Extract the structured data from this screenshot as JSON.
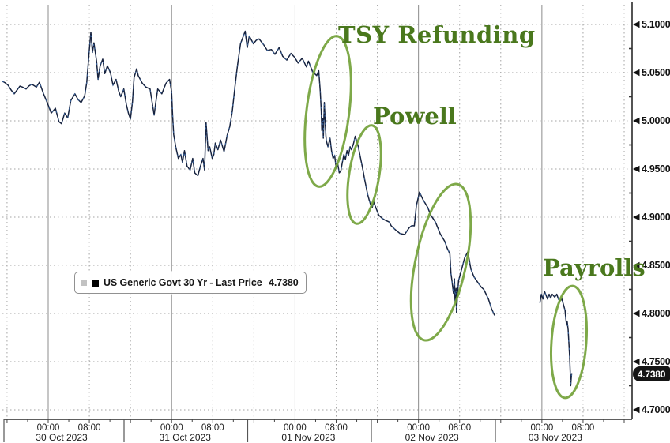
{
  "chart_data": {
    "type": "line",
    "instrument": "US Generic Govt 30 Yr",
    "series_name": "US Generic Govt 30 Yr - Last Price",
    "last_price": 4.738,
    "last_price_label": "4.7380",
    "ylim": [
      4.7,
      5.1
    ],
    "x_unit": "hours since 30 Oct 2023 00:00",
    "grid": "dotted",
    "legend_position": "inside-left",
    "y_ticks": [
      {
        "value": 5.1,
        "label": "5.1000"
      },
      {
        "value": 5.05,
        "label": "5.0500"
      },
      {
        "value": 5.0,
        "label": "5.0000"
      },
      {
        "value": 4.95,
        "label": "4.9500"
      },
      {
        "value": 4.9,
        "label": "4.9000"
      },
      {
        "value": 4.85,
        "label": "4.8500"
      },
      {
        "value": 4.8,
        "label": "4.8000"
      },
      {
        "value": 4.75,
        "label": "4.7500"
      },
      {
        "value": 4.7,
        "label": "4.7000"
      }
    ],
    "x_days": [
      "30 Oct 2023",
      "31 Oct 2023",
      "01 Nov 2023",
      "02 Nov 2023",
      "03 Nov 2023"
    ],
    "time_labels": [
      "00:00",
      "08:00"
    ],
    "segments": [
      [
        [
          -8.9,
          5.041
        ],
        [
          -7.8,
          5.037
        ],
        [
          -6.6,
          5.028
        ],
        [
          -5.5,
          5.036
        ],
        [
          -4.3,
          5.033
        ],
        [
          -3.2,
          5.038
        ],
        [
          -2.3,
          5.035
        ],
        [
          -1.7,
          5.04
        ],
        [
          -0.9,
          5.028
        ],
        [
          -0.2,
          5.019
        ],
        [
          0.6,
          5.008
        ],
        [
          1.4,
          5.013
        ],
        [
          2.1,
          4.999
        ],
        [
          2.6,
          4.997
        ],
        [
          3.2,
          5.008
        ],
        [
          3.8,
          5.003
        ],
        [
          4.4,
          5.021
        ],
        [
          5.2,
          5.028
        ],
        [
          5.8,
          5.022
        ],
        [
          6.4,
          5.019
        ],
        [
          7.1,
          5.026
        ],
        [
          7.5,
          5.04
        ],
        [
          8.0,
          5.074
        ],
        [
          8.3,
          5.092
        ],
        [
          8.6,
          5.071
        ],
        [
          8.9,
          5.081
        ],
        [
          9.4,
          5.062
        ],
        [
          9.7,
          5.043
        ],
        [
          10.1,
          5.057
        ],
        [
          10.6,
          5.064
        ],
        [
          11.0,
          5.049
        ],
        [
          11.5,
          5.057
        ],
        [
          12.1,
          5.05
        ],
        [
          12.6,
          5.037
        ],
        [
          13.2,
          5.043
        ],
        [
          13.7,
          5.031
        ],
        [
          14.1,
          5.025
        ],
        [
          14.7,
          5.033
        ],
        [
          15.2,
          5.017
        ],
        [
          15.6,
          5.008
        ],
        [
          16.0,
          5.002
        ],
        [
          16.4,
          5.02
        ],
        [
          16.7,
          5.045
        ],
        [
          17.2,
          5.054
        ],
        [
          17.5,
          5.047
        ],
        [
          18.3,
          5.039
        ],
        [
          19.0,
          5.035
        ],
        [
          19.8,
          5.033
        ],
        [
          20.6,
          5.006
        ],
        [
          20.9,
          5.018
        ],
        [
          21.3,
          5.033
        ],
        [
          22.1,
          5.028
        ],
        [
          22.9,
          5.039
        ],
        [
          23.6,
          5.043
        ],
        [
          24.0,
          5.03
        ],
        [
          24.2,
          5.005
        ],
        [
          24.4,
          4.986
        ],
        [
          24.8,
          4.973
        ],
        [
          25.3,
          4.961
        ],
        [
          25.8,
          4.965
        ],
        [
          26.1,
          4.957
        ],
        [
          26.5,
          4.969
        ],
        [
          27.0,
          4.953
        ],
        [
          27.6,
          4.949
        ],
        [
          28.1,
          4.961
        ],
        [
          28.5,
          4.946
        ],
        [
          29.1,
          4.943
        ],
        [
          29.6,
          4.953
        ],
        [
          30.1,
          4.961
        ],
        [
          30.4,
          4.949
        ],
        [
          30.7,
          4.998
        ],
        [
          31.1,
          4.969
        ],
        [
          31.4,
          4.973
        ],
        [
          31.9,
          4.961
        ],
        [
          32.2,
          4.965
        ],
        [
          32.5,
          4.977
        ],
        [
          33.0,
          4.97
        ],
        [
          33.5,
          4.98
        ],
        [
          34.2,
          4.968
        ],
        [
          34.8,
          4.985
        ],
        [
          35.3,
          4.994
        ],
        [
          35.8,
          5.01
        ],
        [
          36.3,
          5.035
        ],
        [
          36.8,
          5.057
        ],
        [
          37.4,
          5.08
        ],
        [
          38.3,
          5.093
        ],
        [
          38.7,
          5.076
        ],
        [
          39.1,
          5.088
        ],
        [
          39.9,
          5.08
        ],
        [
          41.0,
          5.085
        ],
        [
          41.9,
          5.079
        ],
        [
          42.6,
          5.073
        ],
        [
          43.4,
          5.074
        ],
        [
          44.1,
          5.069
        ],
        [
          44.9,
          5.076
        ],
        [
          45.6,
          5.067
        ],
        [
          46.4,
          5.063
        ],
        [
          47.2,
          5.07
        ],
        [
          47.9,
          5.066
        ],
        [
          48.6,
          5.06
        ],
        [
          49.4,
          5.065
        ],
        [
          50.2,
          5.056
        ],
        [
          50.6,
          5.062
        ],
        [
          51.4,
          5.051
        ],
        [
          52.2,
          5.047
        ],
        [
          52.6,
          5.052
        ],
        [
          52.9,
          5.031
        ],
        [
          53.1,
          5.01
        ],
        [
          53.2,
          4.99
        ],
        [
          53.4,
          5.002
        ],
        [
          53.5,
          4.982
        ],
        [
          53.7,
          5.019
        ],
        [
          53.9,
          4.995
        ],
        [
          54.0,
          4.984
        ],
        [
          54.1,
          4.979
        ],
        [
          54.4,
          4.973
        ],
        [
          54.8,
          4.982
        ],
        [
          55.1,
          4.969
        ],
        [
          55.4,
          4.961
        ],
        [
          55.7,
          4.964
        ],
        [
          56.0,
          4.951
        ],
        [
          56.3,
          4.955
        ],
        [
          56.6,
          4.946
        ],
        [
          56.9,
          4.948
        ],
        [
          57.2,
          4.957
        ],
        [
          57.5,
          4.965
        ],
        [
          57.8,
          4.96
        ],
        [
          58.1,
          4.969
        ],
        [
          58.4,
          4.964
        ],
        [
          58.7,
          4.973
        ],
        [
          59.0,
          4.97
        ],
        [
          59.4,
          4.977
        ],
        [
          59.7,
          4.984
        ],
        [
          60.0,
          4.979
        ],
        [
          60.3,
          4.973
        ],
        [
          60.6,
          4.965
        ],
        [
          60.9,
          4.957
        ],
        [
          61.2,
          4.949
        ],
        [
          61.5,
          4.94
        ],
        [
          61.8,
          4.932
        ],
        [
          62.1,
          4.924
        ],
        [
          62.4,
          4.918
        ],
        [
          62.7,
          4.913
        ],
        [
          63.0,
          4.91
        ],
        [
          63.3,
          4.916
        ],
        [
          63.7,
          4.91
        ],
        [
          64.3,
          4.902
        ],
        [
          64.9,
          4.899
        ],
        [
          65.5,
          4.897
        ],
        [
          66.3,
          4.895
        ],
        [
          66.7,
          4.891
        ],
        [
          67.5,
          4.887
        ],
        [
          68.4,
          4.883
        ],
        [
          69.3,
          4.882
        ],
        [
          70.2,
          4.889
        ],
        [
          71.2,
          4.891
        ],
        [
          71.6,
          4.912
        ],
        [
          72.2,
          4.926
        ],
        [
          72.9,
          4.918
        ],
        [
          73.8,
          4.91
        ],
        [
          74.4,
          4.902
        ],
        [
          75.3,
          4.895
        ],
        [
          76.2,
          4.883
        ],
        [
          77.1,
          4.875
        ],
        [
          78.1,
          4.862
        ],
        [
          78.3,
          4.842
        ],
        [
          78.5,
          4.834
        ],
        [
          78.8,
          4.821
        ],
        [
          79.0,
          4.836
        ],
        [
          79.1,
          4.813
        ],
        [
          79.3,
          4.826
        ],
        [
          79.4,
          4.801
        ],
        [
          79.6,
          4.82
        ],
        [
          79.8,
          4.834
        ],
        [
          80.4,
          4.846
        ],
        [
          81.0,
          4.858
        ],
        [
          81.6,
          4.864
        ],
        [
          82.2,
          4.846
        ],
        [
          82.8,
          4.838
        ],
        [
          83.7,
          4.831
        ],
        [
          84.7,
          4.825
        ],
        [
          85.6,
          4.815
        ],
        [
          86.2,
          4.805
        ],
        [
          86.8,
          4.798
        ]
      ],
      [
        [
          95.6,
          4.811
        ],
        [
          95.9,
          4.82
        ],
        [
          96.2,
          4.815
        ],
        [
          96.5,
          4.823
        ],
        [
          96.8,
          4.819
        ],
        [
          97.1,
          4.815
        ],
        [
          97.4,
          4.82
        ],
        [
          97.7,
          4.816
        ],
        [
          98.0,
          4.82
        ],
        [
          98.5,
          4.817
        ],
        [
          98.9,
          4.82
        ],
        [
          99.2,
          4.815
        ],
        [
          99.5,
          4.813
        ],
        [
          99.9,
          4.815
        ],
        [
          100.2,
          4.809
        ],
        [
          100.5,
          4.803
        ],
        [
          100.6,
          4.797
        ],
        [
          100.8,
          4.788
        ],
        [
          100.9,
          4.792
        ],
        [
          101.1,
          4.783
        ],
        [
          101.2,
          4.774
        ],
        [
          101.4,
          4.755
        ],
        [
          101.5,
          4.739
        ],
        [
          101.6,
          4.725
        ],
        [
          101.7,
          4.733
        ],
        [
          101.8,
          4.738
        ]
      ]
    ],
    "highlight_ellipses": [
      {
        "cx": 415,
        "cy": 141,
        "rx": 27,
        "ry": 96,
        "rot": 7
      },
      {
        "cx": 461,
        "cy": 221,
        "rx": 19,
        "ry": 63,
        "rot": 9
      },
      {
        "cx": 558,
        "cy": 332,
        "rx": 32,
        "ry": 101,
        "rot": 12
      },
      {
        "cx": 720,
        "cy": 433,
        "rx": 22,
        "ry": 71,
        "rot": 4
      }
    ]
  },
  "callouts": [
    {
      "label": "TSY Refunding"
    },
    {
      "label": "Powell"
    },
    {
      "label": "Payrolls"
    }
  ],
  "legend": {
    "text": "US Generic Govt 30 Yr - Last Price",
    "price": "4.7380",
    "swatch_color": "#000000"
  },
  "badge": {
    "value": "4.7380"
  },
  "colors": {
    "line": "#17233f",
    "line_accent": "#3f6dab",
    "annotation_green": "#4a781d",
    "ellipse_green": "#70a035",
    "grid": "#a3a3a3",
    "axis": "#2a2a2a",
    "badge_bg": "#151515"
  }
}
